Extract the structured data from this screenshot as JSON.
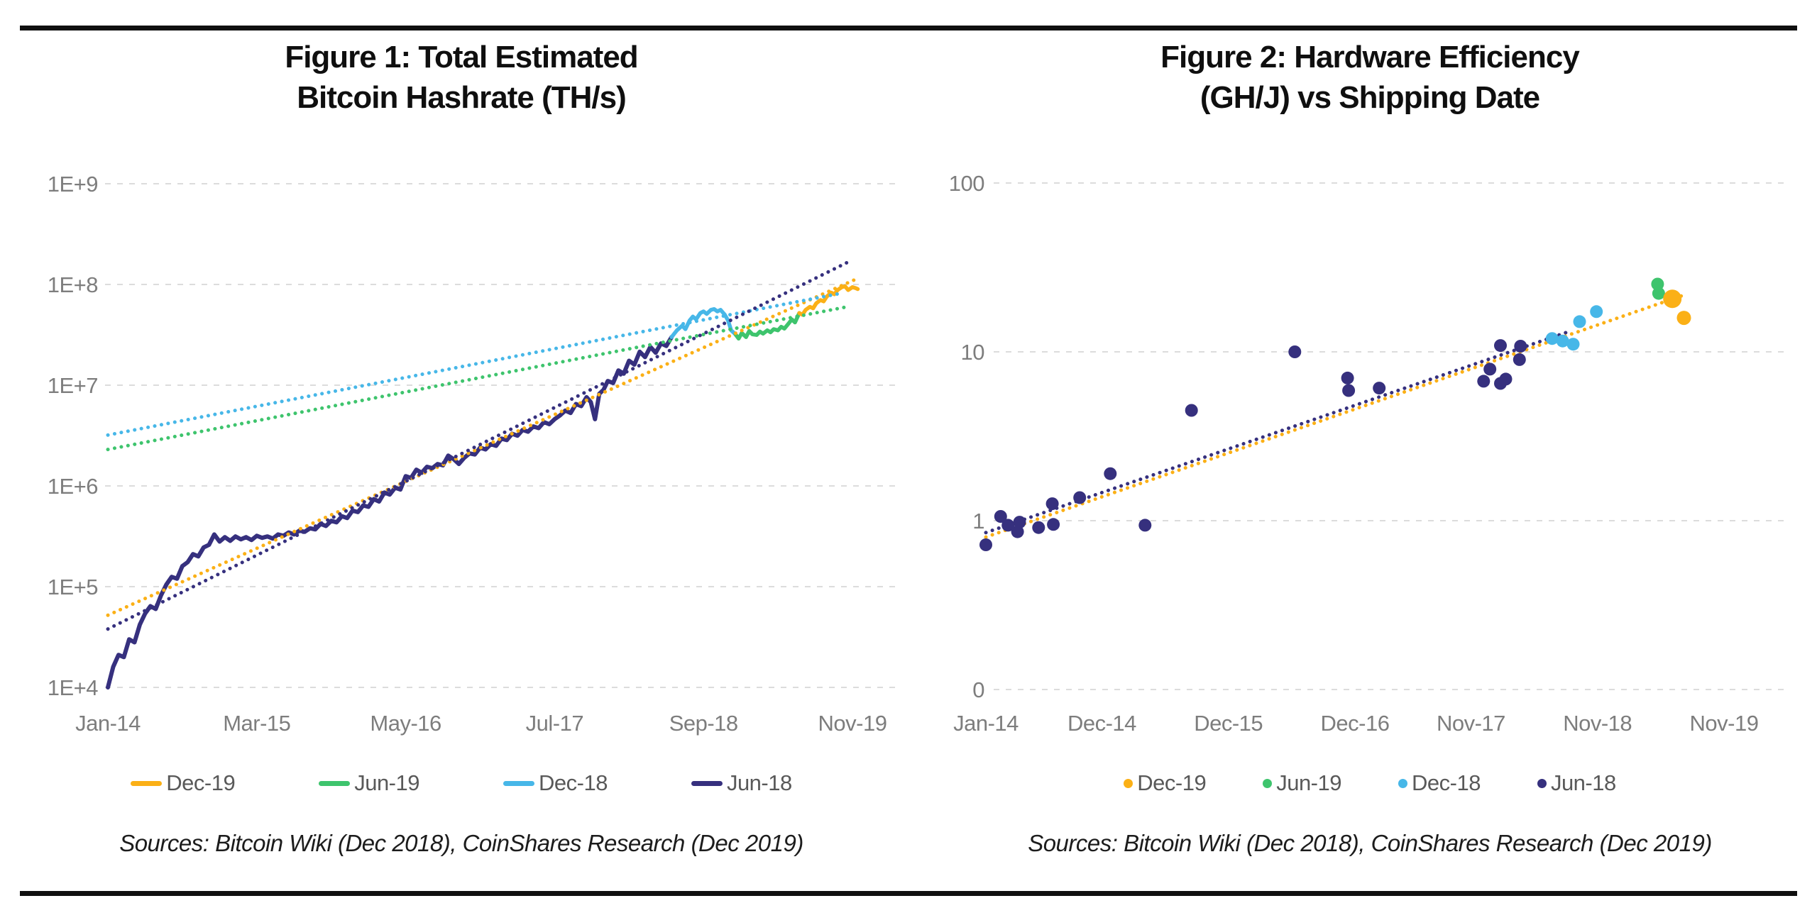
{
  "figure1": {
    "title_line1": "Figure 1: Total Estimated",
    "title_line2": "Bitcoin Hashrate (TH/s)",
    "sources": "Sources: Bitcoin Wiki (Dec 2018), CoinShares Research (Dec 2019)",
    "legend": [
      {
        "label": "Dec-19",
        "color": "#FBB016"
      },
      {
        "label": "Jun-19",
        "color": "#3EC46D"
      },
      {
        "label": "Dec-18",
        "color": "#47B7E8"
      },
      {
        "label": "Jun-18",
        "color": "#36307E"
      }
    ]
  },
  "figure2": {
    "title_line1": "Figure 2: Hardware Efficiency",
    "title_line2": "(GH/J) vs Shipping Date",
    "sources": "Sources: Bitcoin Wiki (Dec 2018), CoinShares Research (Dec 2019)",
    "legend": [
      {
        "label": "Dec-19",
        "color": "#FBB016"
      },
      {
        "label": "Jun-19",
        "color": "#3EC46D"
      },
      {
        "label": "Dec-18",
        "color": "#47B7E8"
      },
      {
        "label": "Jun-18",
        "color": "#36307E"
      }
    ]
  },
  "chart_data": [
    {
      "type": "line",
      "title": "Figure 1: Total Estimated Bitcoin Hashrate (TH/s)",
      "xlabel": "",
      "ylabel": "TH/s",
      "y_scale": "log",
      "ylim_exponents": [
        4,
        9
      ],
      "grid": true,
      "legend_position": "bottom",
      "y_ticks": [
        {
          "label": "1E+9",
          "exp": 9
        },
        {
          "label": "1E+8",
          "exp": 8
        },
        {
          "label": "1E+7",
          "exp": 7
        },
        {
          "label": "1E+6",
          "exp": 6
        },
        {
          "label": "1E+5",
          "exp": 5
        },
        {
          "label": "1E+4",
          "exp": 4
        }
      ],
      "x_ticks": [
        {
          "label": "Jan-14",
          "m": 0
        },
        {
          "label": "Mar-15",
          "m": 14
        },
        {
          "label": "May-16",
          "m": 28
        },
        {
          "label": "Jul-17",
          "m": 42
        },
        {
          "label": "Sep-18",
          "m": 56
        },
        {
          "label": "Nov-19",
          "m": 70
        }
      ],
      "series": [
        {
          "name": "Jun-18",
          "color": "#36307E",
          "style": "solid",
          "width": 6,
          "points": [
            [
              0,
              10000
            ],
            [
              0.5,
              16000
            ],
            [
              1,
              21000
            ],
            [
              1.5,
              20000
            ],
            [
              2,
              30000
            ],
            [
              2.5,
              28000
            ],
            [
              3,
              42000
            ],
            [
              3.5,
              54000
            ],
            [
              4,
              64000
            ],
            [
              4.5,
              60000
            ],
            [
              5,
              82000
            ],
            [
              5.5,
              105000
            ],
            [
              6,
              125000
            ],
            [
              6.5,
              120000
            ],
            [
              7,
              160000
            ],
            [
              7.5,
              175000
            ],
            [
              8,
              210000
            ],
            [
              8.5,
              200000
            ],
            [
              9,
              245000
            ],
            [
              9.5,
              260000
            ],
            [
              10,
              330000
            ],
            [
              10.5,
              280000
            ],
            [
              11,
              310000
            ],
            [
              11.5,
              285000
            ],
            [
              12,
              315000
            ],
            [
              12.5,
              295000
            ],
            [
              13,
              310000
            ],
            [
              13.5,
              290000
            ],
            [
              14,
              320000
            ],
            [
              14.5,
              305000
            ],
            [
              15,
              315000
            ],
            [
              15.5,
              300000
            ],
            [
              16,
              330000
            ],
            [
              16.5,
              320000
            ],
            [
              17,
              345000
            ],
            [
              17.5,
              330000
            ],
            [
              18,
              360000
            ],
            [
              18.5,
              350000
            ],
            [
              19,
              380000
            ],
            [
              19.5,
              370000
            ],
            [
              20,
              420000
            ],
            [
              20.5,
              400000
            ],
            [
              21,
              450000
            ],
            [
              21.5,
              435000
            ],
            [
              22,
              500000
            ],
            [
              22.5,
              480000
            ],
            [
              23,
              570000
            ],
            [
              23.5,
              550000
            ],
            [
              24,
              640000
            ],
            [
              24.5,
              620000
            ],
            [
              25,
              740000
            ],
            [
              25.5,
              700000
            ],
            [
              26,
              860000
            ],
            [
              26.5,
              820000
            ],
            [
              27,
              960000
            ],
            [
              27.5,
              920000
            ],
            [
              28,
              1250000
            ],
            [
              28.5,
              1200000
            ],
            [
              29,
              1450000
            ],
            [
              29.5,
              1350000
            ],
            [
              30,
              1550000
            ],
            [
              30.5,
              1500000
            ],
            [
              31,
              1650000
            ],
            [
              31.5,
              1600000
            ],
            [
              32,
              2000000
            ],
            [
              32.5,
              1850000
            ],
            [
              33,
              1650000
            ],
            [
              33.5,
              1900000
            ],
            [
              34,
              2100000
            ],
            [
              34.5,
              2050000
            ],
            [
              35,
              2400000
            ],
            [
              35.5,
              2300000
            ],
            [
              36,
              2600000
            ],
            [
              36.5,
              2500000
            ],
            [
              37,
              2950000
            ],
            [
              37.5,
              2850000
            ],
            [
              38,
              3300000
            ],
            [
              38.5,
              3150000
            ],
            [
              39,
              3600000
            ],
            [
              39.5,
              3450000
            ],
            [
              40,
              3900000
            ],
            [
              40.5,
              3750000
            ],
            [
              41,
              4300000
            ],
            [
              41.5,
              4100000
            ],
            [
              42,
              4600000
            ],
            [
              42.5,
              5000000
            ],
            [
              43,
              5600000
            ],
            [
              43.5,
              5300000
            ],
            [
              44,
              6500000
            ],
            [
              44.5,
              6200000
            ],
            [
              45,
              7600000
            ],
            [
              45.4,
              6800000
            ],
            [
              45.8,
              4600000
            ],
            [
              46.2,
              8200000
            ],
            [
              46.6,
              9000000
            ],
            [
              47,
              11000000
            ],
            [
              47.5,
              10500000
            ],
            [
              48,
              14000000
            ],
            [
              48.5,
              13000000
            ],
            [
              49,
              17500000
            ],
            [
              49.5,
              16000000
            ],
            [
              50,
              21500000
            ],
            [
              50.5,
              19000000
            ],
            [
              51,
              24000000
            ],
            [
              51.5,
              21000000
            ],
            [
              52,
              26000000
            ],
            [
              52.5,
              24500000
            ],
            [
              53,
              30000000
            ]
          ]
        },
        {
          "name": "Dec-18",
          "color": "#47B7E8",
          "style": "solid",
          "width": 5.5,
          "points": [
            [
              53,
              30000000
            ],
            [
              53.5,
              35000000
            ],
            [
              54,
              39000000
            ],
            [
              54.3,
              36000000
            ],
            [
              54.7,
              44000000
            ],
            [
              55,
              48000000
            ],
            [
              55.3,
              45000000
            ],
            [
              55.7,
              52000000
            ],
            [
              56,
              54000000
            ],
            [
              56.3,
              51000000
            ],
            [
              56.7,
              56000000
            ],
            [
              57,
              57000000
            ],
            [
              57.3,
              54000000
            ],
            [
              57.6,
              56000000
            ],
            [
              58,
              50000000
            ],
            [
              58.3,
              44000000
            ],
            [
              58.6,
              35000000
            ],
            [
              59,
              32000000
            ]
          ]
        },
        {
          "name": "Jun-19",
          "color": "#3EC46D",
          "style": "solid",
          "width": 5.5,
          "points": [
            [
              59,
              32000000
            ],
            [
              59.3,
              29000000
            ],
            [
              59.6,
              33000000
            ],
            [
              60,
              30000000
            ],
            [
              60.3,
              34500000
            ],
            [
              60.6,
              32000000
            ],
            [
              61,
              31500000
            ],
            [
              61.3,
              34000000
            ],
            [
              61.6,
              32500000
            ],
            [
              62,
              35000000
            ],
            [
              62.3,
              33500000
            ],
            [
              62.6,
              36000000
            ],
            [
              63,
              35000000
            ],
            [
              63.3,
              38000000
            ],
            [
              63.6,
              36500000
            ],
            [
              64,
              41000000
            ],
            [
              64.3,
              45000000
            ],
            [
              64.6,
              42000000
            ],
            [
              65,
              52000000
            ]
          ]
        },
        {
          "name": "Dec-19",
          "color": "#FBB016",
          "style": "solid",
          "width": 5.5,
          "points": [
            [
              65,
              52000000
            ],
            [
              65.3,
              50000000
            ],
            [
              65.6,
              56000000
            ],
            [
              66,
              60000000
            ],
            [
              66.3,
              58000000
            ],
            [
              66.6,
              65000000
            ],
            [
              67,
              70000000
            ],
            [
              67.3,
              68000000
            ],
            [
              67.6,
              76000000
            ],
            [
              68,
              83000000
            ],
            [
              68.3,
              80000000
            ],
            [
              68.6,
              88000000
            ],
            [
              69,
              94000000
            ],
            [
              69.3,
              96000000
            ],
            [
              69.6,
              88000000
            ],
            [
              70,
              94000000
            ],
            [
              70.3,
              92000000
            ],
            [
              70.5,
              90000000
            ]
          ]
        },
        {
          "name": "Dec-19 trend",
          "color": "#FBB016",
          "style": "dotted",
          "width": 5,
          "points": [
            [
              0,
              52000
            ],
            [
              70.5,
              115000000
            ]
          ]
        },
        {
          "name": "Jun-19 trend",
          "color": "#3EC46D",
          "style": "dotted",
          "width": 5,
          "points": [
            [
              0,
              2300000
            ],
            [
              69.5,
              60000000
            ]
          ]
        },
        {
          "name": "Dec-18 trend",
          "color": "#47B7E8",
          "style": "dotted",
          "width": 5,
          "points": [
            [
              0,
              3200000
            ],
            [
              69,
              82000000
            ]
          ]
        },
        {
          "name": "Jun-18 trend",
          "color": "#36307E",
          "style": "dotted",
          "width": 5,
          "points": [
            [
              0,
              38000
            ],
            [
              69.5,
              165000000
            ]
          ]
        }
      ]
    },
    {
      "type": "scatter",
      "title": "Figure 2: Hardware Efficiency (GH/J) vs Shipping Date",
      "xlabel": "Shipping Date",
      "ylabel": "GH/J",
      "y_scale": "log",
      "grid": true,
      "legend_position": "bottom",
      "y_ticks": [
        {
          "label": "100",
          "value": 100
        },
        {
          "label": "10",
          "value": 10
        },
        {
          "label": "1",
          "value": 1
        },
        {
          "label": "0",
          "value": 0.1
        }
      ],
      "x_ticks": [
        {
          "label": "Jan-14",
          "m": 0
        },
        {
          "label": "Dec-14",
          "m": 11
        },
        {
          "label": "Dec-15",
          "m": 23
        },
        {
          "label": "Dec-16",
          "m": 35
        },
        {
          "label": "Nov-17",
          "m": 46
        },
        {
          "label": "Nov-18",
          "m": 58
        },
        {
          "label": "Nov-19",
          "m": 70
        }
      ],
      "trends": [
        {
          "name": "Dec-19 trend",
          "color": "#FBB016",
          "style": "dotted",
          "width": 5,
          "points": [
            [
              0,
              0.8
            ],
            [
              66,
              21.5
            ]
          ]
        },
        {
          "name": "Jun-18 trend",
          "color": "#36307E",
          "style": "dotted",
          "width": 5,
          "points": [
            [
              0,
              0.85
            ],
            [
              55,
              13.0
            ]
          ]
        }
      ],
      "series": [
        {
          "name": "Jun-18",
          "color": "#36307E",
          "r": 9,
          "points": [
            [
              0,
              0.72
            ],
            [
              1.4,
              1.06
            ],
            [
              2.1,
              0.94
            ],
            [
              3.0,
              0.86
            ],
            [
              3.2,
              0.98
            ],
            [
              5.0,
              0.91
            ],
            [
              6.3,
              1.26
            ],
            [
              6.4,
              0.95
            ],
            [
              8.9,
              1.37
            ],
            [
              11.8,
              1.9
            ],
            [
              15.1,
              0.94
            ],
            [
              19.5,
              4.5
            ],
            [
              29.3,
              10.0
            ],
            [
              34.3,
              7.0
            ],
            [
              34.4,
              5.9
            ],
            [
              37.3,
              6.1
            ],
            [
              47.2,
              6.7
            ],
            [
              47.8,
              7.9
            ],
            [
              48.8,
              10.9
            ],
            [
              48.8,
              6.5
            ],
            [
              49.3,
              6.9
            ],
            [
              50.6,
              9.0
            ],
            [
              50.7,
              10.8
            ]
          ]
        },
        {
          "name": "Dec-18",
          "color": "#47B7E8",
          "r": 9,
          "points": [
            [
              53.7,
              12.0
            ],
            [
              54.7,
              11.6
            ],
            [
              55.7,
              11.1
            ],
            [
              56.3,
              15.1
            ],
            [
              57.9,
              17.3
            ]
          ]
        },
        {
          "name": "Jun-19",
          "color": "#3EC46D",
          "r": 9,
          "points": [
            [
              63.7,
              25.2
            ],
            [
              63.8,
              22.2
            ]
          ]
        },
        {
          "name": "Dec-19",
          "color": "#FBB016",
          "r": 10,
          "points": [
            [
              65.1,
              20.6,
              13
            ],
            [
              66.2,
              15.9,
              10
            ]
          ]
        }
      ]
    }
  ]
}
